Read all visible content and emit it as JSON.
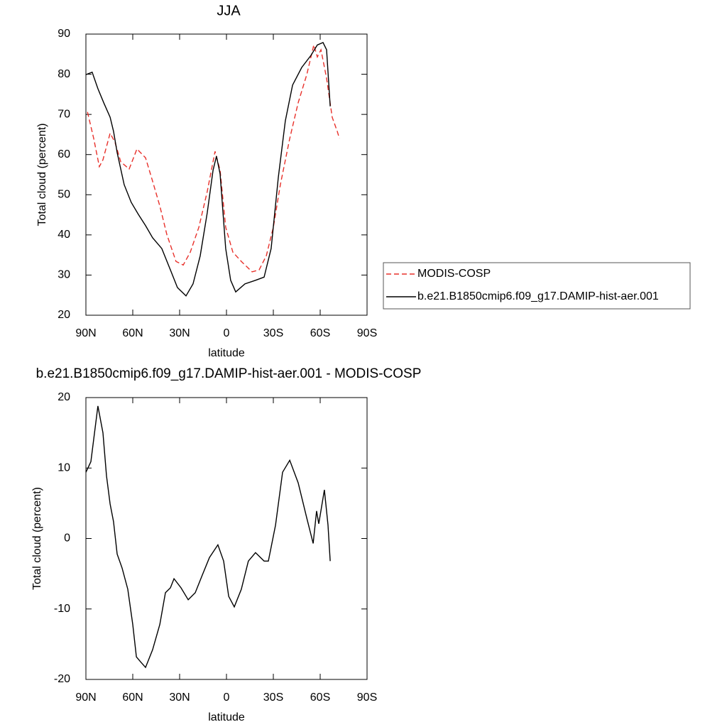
{
  "chart_data": [
    {
      "type": "line",
      "title": "JJA",
      "xlabel": "latitude",
      "ylabel": "Total cloud (percent)",
      "legend": "right",
      "xlim": [
        90,
        -90
      ],
      "xticks": [
        {
          "value": 90,
          "label": "90N"
        },
        {
          "value": 60,
          "label": "60N"
        },
        {
          "value": 30,
          "label": "30N"
        },
        0,
        {
          "value": -30,
          "label": "30S"
        },
        {
          "value": -60,
          "label": "60S"
        },
        {
          "value": -90,
          "label": "90S"
        }
      ],
      "ylim": [
        20,
        90
      ],
      "yticks": [
        20,
        30,
        40,
        50,
        60,
        70,
        80,
        90
      ],
      "series": [
        {
          "name": "MODIS-COSP",
          "color": "#e8302a",
          "dash": true,
          "x": [
            89,
            85,
            81.4,
            79.1,
            74.5,
            71.4,
            67.7,
            62.3,
            57.3,
            51.8,
            47.3,
            42.7,
            38.2,
            32.3,
            27.7,
            23.2,
            17.7,
            12.3,
            7.3,
            4.1,
            0.5,
            -4.1,
            -9.5,
            -16.4,
            -20.9,
            -25.5,
            -30,
            -34.5,
            -40.5,
            -45.9,
            -51.4,
            -55.9,
            -58.2,
            -60.5,
            -64.1,
            -67.7,
            -70.9,
            -72.3
          ],
          "values": [
            70.6,
            64,
            57,
            58.7,
            65.3,
            63.1,
            58.2,
            56.4,
            61.4,
            59.2,
            53.4,
            47.2,
            40.1,
            33.4,
            32.5,
            35.7,
            41.9,
            50.8,
            60.8,
            56.1,
            41.9,
            35.7,
            33.4,
            30.8,
            31.3,
            34.8,
            41.9,
            52.5,
            64,
            72.9,
            79.9,
            87.3,
            84.3,
            86.1,
            79,
            69.3,
            65.8,
            64
          ]
        },
        {
          "name": "b.e21.B1850cmip6.f09_g17.DAMIP-hist-aer.001",
          "color": "#000000",
          "dash": false,
          "x": [
            90,
            86,
            82.3,
            78.6,
            74.5,
            72.3,
            70,
            65.5,
            61,
            56.4,
            51.8,
            47.3,
            41.4,
            35.9,
            31.4,
            25.9,
            21.4,
            16.8,
            12.3,
            8.6,
            6.4,
            4.1,
            0.5,
            -2.7,
            -5.9,
            -11.8,
            -18.6,
            -24.1,
            -28.6,
            -33.2,
            -37.7,
            -42.3,
            -48.2,
            -54.1,
            -58.2,
            -61.8,
            -64.1,
            -66.4
          ],
          "values": [
            79.9,
            80.5,
            76.4,
            72.9,
            69.3,
            65.8,
            60.5,
            52.5,
            48.1,
            45.1,
            42.3,
            39.3,
            36.6,
            31.3,
            26.9,
            24.8,
            27.8,
            34.8,
            45.5,
            56.1,
            59.6,
            55.2,
            36.6,
            28.7,
            25.8,
            27.8,
            28.7,
            29.5,
            36.6,
            54.3,
            68.4,
            77.3,
            81.7,
            84.7,
            87.3,
            87.9,
            86.1,
            72
          ]
        }
      ]
    },
    {
      "type": "line",
      "title": "b.e21.B1850cmip6.f09_g17.DAMIP-hist-aer.001 - MODIS-COSP",
      "xlabel": "latitude",
      "ylabel": "Total cloud (percent)",
      "xlim": [
        90,
        -90
      ],
      "xticks": [
        {
          "value": 90,
          "label": "90N"
        },
        {
          "value": 60,
          "label": "60N"
        },
        {
          "value": 30,
          "label": "30N"
        },
        0,
        {
          "value": -30,
          "label": "30S"
        },
        {
          "value": -60,
          "label": "60S"
        },
        {
          "value": -90,
          "label": "90S"
        }
      ],
      "ylim": [
        -20,
        20
      ],
      "yticks": [
        -20,
        -10,
        0,
        10,
        20
      ],
      "series": [
        {
          "color": "#000000",
          "dash": false,
          "x": [
            90,
            86.8,
            82.3,
            79.1,
            76.8,
            74.5,
            72.3,
            70,
            66.8,
            63.2,
            60,
            57.7,
            55,
            51.8,
            47.3,
            42.7,
            39.1,
            35.9,
            33.6,
            29.1,
            24.5,
            20,
            15.5,
            10.9,
            5.5,
            1.8,
            -1.4,
            -5,
            -9.5,
            -14,
            -18.6,
            -24.1,
            -26.8,
            -31.4,
            -35.9,
            -40.5,
            -45.9,
            -51.4,
            -55.5,
            -57.7,
            -59.1,
            -62.7,
            -65,
            -66.4
          ],
          "values": [
            9.4,
            10.9,
            18.8,
            15,
            8.9,
            4.9,
            2.4,
            -2.2,
            -4.2,
            -7.2,
            -12.2,
            -16.8,
            -17.5,
            -18.3,
            -15.8,
            -12.2,
            -7.7,
            -7,
            -5.7,
            -7,
            -8.7,
            -7.7,
            -5.2,
            -2.7,
            -0.9,
            -3.2,
            -8.2,
            -9.7,
            -7.2,
            -3.2,
            -2,
            -3.2,
            -3.2,
            1.9,
            9.4,
            11.1,
            7.9,
            2.9,
            -0.7,
            3.9,
            2.1,
            6.9,
            1.9,
            -3.2
          ]
        }
      ]
    }
  ]
}
